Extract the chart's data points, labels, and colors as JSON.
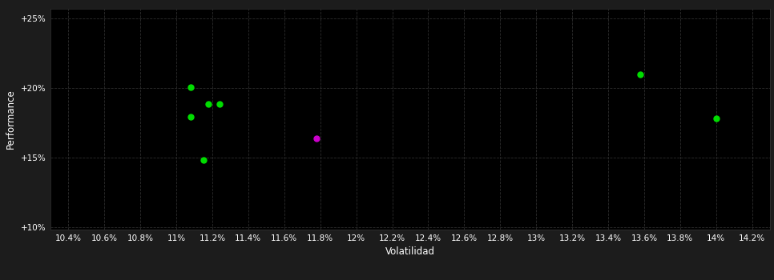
{
  "background_color": "#1c1c1c",
  "plot_bg_color": "#000000",
  "grid_color": "#2a2a2a",
  "grid_style": "--",
  "xlabel": "Volatilidad",
  "ylabel": "Performance",
  "xlabel_color": "#ffffff",
  "ylabel_color": "#ffffff",
  "tick_color": "#ffffff",
  "xlim": [
    0.103,
    0.143
  ],
  "ylim": [
    0.098,
    0.257
  ],
  "xticks": [
    0.104,
    0.106,
    0.108,
    0.11,
    0.112,
    0.114,
    0.116,
    0.118,
    0.12,
    0.122,
    0.124,
    0.126,
    0.128,
    0.13,
    0.132,
    0.134,
    0.136,
    0.138,
    0.14,
    0.142
  ],
  "xtick_labels": [
    "10.4%",
    "10.6%",
    "10.8%",
    "11%",
    "11.2%",
    "11.4%",
    "11.6%",
    "11.8%",
    "12%",
    "12.2%",
    "12.4%",
    "12.6%",
    "12.8%",
    "13%",
    "13.2%",
    "13.4%",
    "13.6%",
    "13.8%",
    "14%",
    "14.2%"
  ],
  "yticks": [
    0.1,
    0.15,
    0.2,
    0.25
  ],
  "ytick_labels": [
    "+10%",
    "+15%",
    "+20%",
    "+25%"
  ],
  "green_points": [
    [
      0.1108,
      0.2005
    ],
    [
      0.1118,
      0.188
    ],
    [
      0.1124,
      0.188
    ],
    [
      0.1108,
      0.179
    ],
    [
      0.1115,
      0.148
    ],
    [
      0.1358,
      0.2095
    ],
    [
      0.14,
      0.178
    ]
  ],
  "magenta_points": [
    [
      0.1178,
      0.1635
    ]
  ],
  "green_color": "#00dd00",
  "magenta_color": "#cc00cc",
  "marker_size": 5,
  "font_size_tick": 7.5,
  "font_size_label": 8.5
}
